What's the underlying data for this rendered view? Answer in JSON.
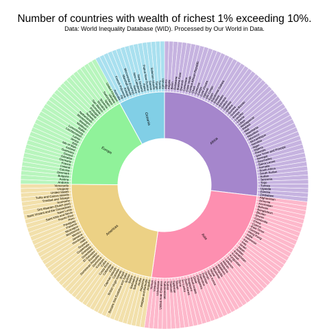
{
  "chart_data": {
    "type": "sunburst",
    "title": "Number of countries with wealth of richest 1% exceeding 10%.",
    "subtitle": "Data: World Inequality Database (WID). Processed by Our World in Data.",
    "hierarchy": [
      {
        "name": "Africa",
        "color": "#a586cc",
        "light": "#c6b3e0",
        "children": [
          "Algeria",
          "Angola",
          "Benin",
          "Botswana",
          "Burkina Faso",
          "Burundi",
          "Cameroon",
          "Cape Verde",
          "Central African Republic",
          "Chad",
          "Comoros",
          "Congo",
          "Cote d'Ivoire",
          "Djibouti",
          "DR Congo",
          "Egypt",
          "Equatorial Guinea",
          "Eritrea",
          "Eswatini",
          "Ethiopia",
          "Gabon",
          "Gambia",
          "Ghana",
          "Guinea",
          "Guinea-Bissau",
          "Kenya",
          "Lesotho",
          "Liberia",
          "Libya",
          "Madagascar",
          "Malawi",
          "Mali",
          "Mauritania",
          "Mauritius",
          "Morocco",
          "Mozambique",
          "Namibia",
          "Niger",
          "Nigeria",
          "Rwanda",
          "Sao Tome and Principe",
          "Senegal",
          "Seychelles",
          "Sierra Leone",
          "Somalia",
          "South Africa",
          "South Sudan",
          "Sudan",
          "Tanzania",
          "Togo",
          "Tunisia",
          "Uganda",
          "Zambia",
          "Zimbabwe"
        ]
      },
      {
        "name": "Asia",
        "color": "#fd8fb0",
        "light": "#fdb8cb",
        "children": [
          "Afghanistan",
          "Armenia",
          "Azerbaijan",
          "Bahrain",
          "Bangladesh",
          "Bhutan",
          "Brunei",
          "Cambodia",
          "China",
          "Cyprus",
          "East Timor",
          "Georgia",
          "Hong Kong",
          "India",
          "Indonesia",
          "Iran",
          "Iraq",
          "Israel",
          "Japan",
          "Jordan",
          "Kazakhstan",
          "Kuwait",
          "Kyrgyzstan",
          "Laos",
          "Lebanon",
          "Macao",
          "Malaysia",
          "Maldives",
          "Mongolia",
          "Myanmar",
          "Nepal",
          "North Korea",
          "Oman",
          "Pakistan",
          "Palestine",
          "Philippines",
          "Qatar",
          "Saudi Arabia",
          "Singapore",
          "South Korea",
          "Sri Lanka",
          "Syria",
          "Taiwan",
          "Tajikistan",
          "Thailand",
          "Turkey",
          "Turkmenistan",
          "United Arab Emirates",
          "Uzbekistan",
          "Vietnam",
          "Yemen"
        ]
      },
      {
        "name": "Americas",
        "color": "#ecd185",
        "light": "#f2e0ab",
        "children": [
          "Anguilla",
          "Antigua and Barbuda",
          "Argentina",
          "Aruba",
          "Bahamas",
          "Barbados",
          "Belize",
          "Bolivia",
          "Bonaire Sint Eustatius and Saba",
          "Brazil",
          "British Virgin Islands",
          "Canada",
          "Cayman Islands",
          "Chile",
          "Colombia",
          "Costa Rica",
          "Cuba",
          "Curacao",
          "Dominica",
          "Dominican Republic",
          "Ecuador",
          "El Salvador",
          "Greenland",
          "Grenada",
          "Guatemala",
          "Guyana",
          "Haiti",
          "Honduras",
          "Jamaica",
          "Mexico",
          "Montserrat",
          "Nicaragua",
          "Panama",
          "Paraguay",
          "Peru",
          "Puerto Rico",
          "Saint Kitts and Nevis",
          "Saint Lucia",
          "Saint Vincent and the Grenadines",
          "Sint Maarten (Dutch part)",
          "Suriname",
          "Trinidad and Tobago",
          "Turks and Caicos Islands",
          "United States",
          "Uruguay",
          "Venezuela"
        ]
      },
      {
        "name": "Europe",
        "color": "#90f29a",
        "light": "#b8f5bd",
        "children": [
          "Andorra",
          "Austria",
          "Bulgaria",
          "Denmark",
          "Estonia",
          "Finland",
          "France",
          "Germany",
          "Gibraltar",
          "Greece",
          "Guernsey",
          "Iceland",
          "Isle of Man",
          "Italy",
          "Jersey",
          "Latvia",
          "Liechtenstein",
          "Luxembourg",
          "Malta",
          "Moldova",
          "Monaco",
          "Montenegro",
          "Netherlands",
          "Norway",
          "Poland",
          "Portugal",
          "Romania",
          "San Marino",
          "Slovakia",
          "Slovenia",
          "Spain",
          "Switzerland",
          "Ukraine",
          "United Kingdom"
        ]
      },
      {
        "name": "Oceania",
        "color": "#81cfe6",
        "light": "#a9e0ef",
        "children": [
          "Australia",
          "Fiji",
          "French Polynesia",
          "Kiribati",
          "Marshall Islands",
          "Micronesia (country)",
          "Nauru",
          "New Caledonia",
          "New Zealand",
          "Palau",
          "Papua New Guinea",
          "Samoa",
          "Solomon Islands",
          "Tonga",
          "Tuvalu",
          "Vanuatu"
        ]
      }
    ],
    "order": "clockwise from top"
  }
}
